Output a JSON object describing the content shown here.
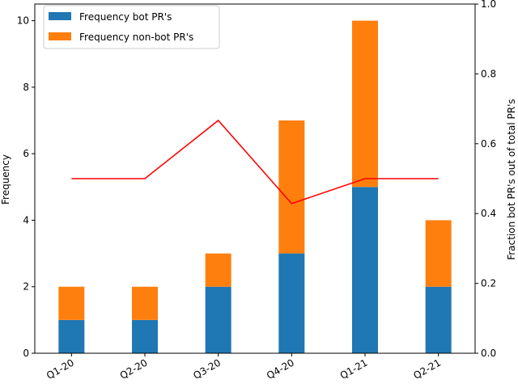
{
  "chart_data": {
    "type": "bar",
    "categories": [
      "Q1-20",
      "Q2-20",
      "Q3-20",
      "Q4-20",
      "Q1-21",
      "Q2-21"
    ],
    "series": [
      {
        "name": "Frequency bot PR's",
        "type": "bar",
        "stacked": true,
        "color": "#1f77b4",
        "values": [
          1,
          1,
          2,
          3,
          5,
          2
        ]
      },
      {
        "name": "Frequency non-bot PR's",
        "type": "bar",
        "stacked": true,
        "color": "#ff7f0e",
        "values": [
          1,
          1,
          1,
          4,
          5,
          2
        ]
      },
      {
        "name": "",
        "type": "line",
        "axis": "right",
        "color": "#ff0000",
        "values": [
          0.5,
          0.5,
          0.6667,
          0.4286,
          0.5,
          0.5
        ]
      }
    ],
    "ylabel": "Frequency",
    "y2label": "Fraction bot PR's out of total PR's",
    "ylim": [
      0,
      10.5
    ],
    "y2lim": [
      0,
      1.0
    ],
    "yticks": [
      "0",
      "2",
      "4",
      "6",
      "8",
      "10"
    ],
    "y2ticks": [
      "0.0",
      "0.2",
      "0.4",
      "0.6",
      "0.8",
      "1.0"
    ],
    "legend": "top-left",
    "grid": false
  }
}
